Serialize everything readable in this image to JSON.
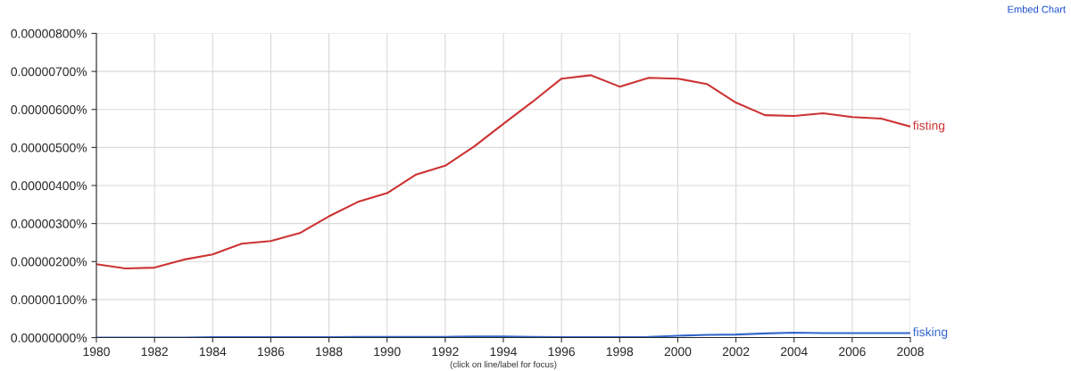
{
  "chart_data": {
    "type": "line",
    "x": [
      1980,
      1981,
      1982,
      1983,
      1984,
      1985,
      1986,
      1987,
      1988,
      1989,
      1990,
      1991,
      1992,
      1993,
      1994,
      1995,
      1996,
      1997,
      1998,
      1999,
      2000,
      2001,
      2002,
      2003,
      2004,
      2005,
      2006,
      2007,
      2008
    ],
    "series": [
      {
        "name": "fisting",
        "color": "#cc3333",
        "values": [
          1.93e-06,
          1.82e-06,
          1.84e-06,
          2.05e-06,
          2.19e-06,
          2.47e-06,
          2.54e-06,
          2.75e-06,
          3.19e-06,
          3.57e-06,
          3.8e-06,
          4.29e-06,
          4.52e-06,
          5.03e-06,
          5.62e-06,
          6.2e-06,
          6.81e-06,
          6.9e-06,
          6.6e-06,
          6.83e-06,
          6.81e-06,
          6.67e-06,
          6.18e-06,
          5.85e-06,
          5.83e-06,
          5.9e-06,
          5.8e-06,
          5.76e-06,
          5.55e-06
        ]
      },
      {
        "name": "fisking",
        "color": "#3366cc",
        "values": [
          0.0,
          0.0,
          0.0,
          0.0,
          1e-08,
          1e-08,
          1e-08,
          1e-08,
          1e-08,
          2e-08,
          2e-08,
          2e-08,
          2e-08,
          3e-08,
          3e-08,
          2e-08,
          1e-08,
          1e-08,
          1e-08,
          2e-08,
          5e-08,
          7e-08,
          8e-08,
          1.1e-07,
          1.3e-07,
          1.2e-07,
          1.2e-07,
          1.2e-07,
          1.2e-07
        ]
      }
    ],
    "xlim": [
      1980,
      2008
    ],
    "xticks": [
      1980,
      1982,
      1984,
      1986,
      1988,
      1990,
      1992,
      1994,
      1996,
      1998,
      2000,
      2002,
      2004,
      2006,
      2008
    ],
    "ylim": [
      0,
      8e-06
    ],
    "yticks": [
      {
        "value": 0,
        "label": "0.00000000%"
      },
      {
        "value": 1e-06,
        "label": "0.00000100%"
      },
      {
        "value": 2e-06,
        "label": "0.00000200%"
      },
      {
        "value": 3e-06,
        "label": "0.00000300%"
      },
      {
        "value": 4e-06,
        "label": "0.00000400%"
      },
      {
        "value": 5e-06,
        "label": "0.00000500%"
      },
      {
        "value": 6e-06,
        "label": "0.00000600%"
      },
      {
        "value": 7e-06,
        "label": "0.00000700%"
      },
      {
        "value": 8e-06,
        "label": "0.00000800%"
      }
    ],
    "grid": true,
    "legend": false,
    "marker": "none",
    "line_style": "solid",
    "annotations": [
      "(click on line/label for focus)",
      "Embed Chart"
    ]
  }
}
